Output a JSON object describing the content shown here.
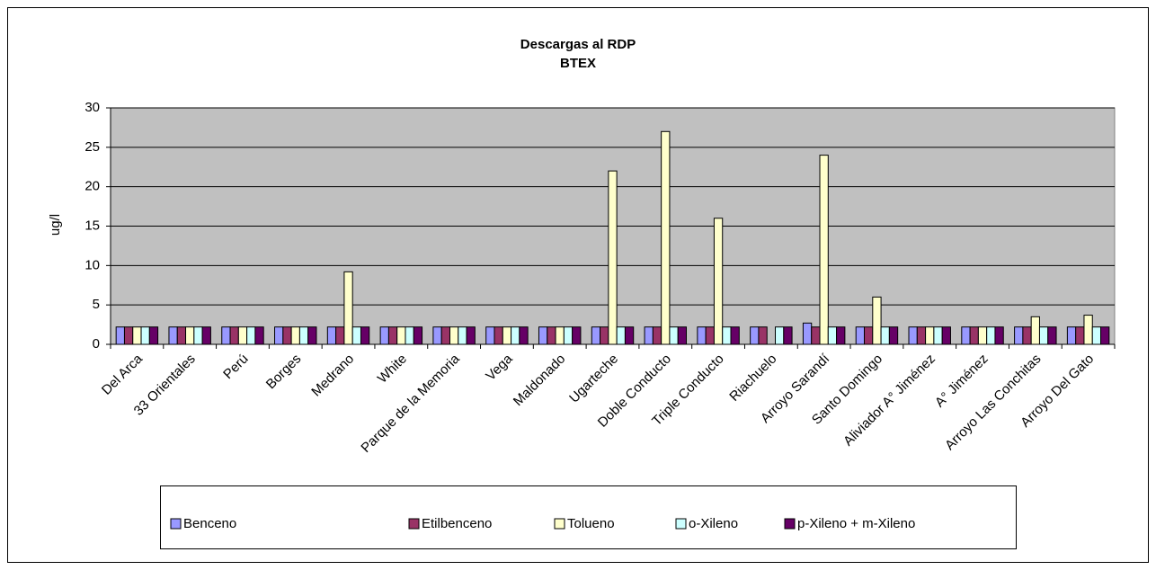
{
  "chart_data": {
    "type": "bar",
    "title": "Descargas al RDP",
    "subtitle": "BTEX",
    "y_label": "ug/l",
    "categories": [
      "Del  Arca",
      "33 Orientales",
      "Perú",
      "Borges",
      "Medrano",
      "White",
      "Parque de la Memoria",
      "Vega",
      "Maldonado",
      "Ugarteche",
      "Doble Conducto",
      "Triple Conducto",
      "Riachuelo",
      "Arroyo Sarandí",
      "Santo Domingo",
      "Aliviador A° Jiménez",
      "A° Jiménez",
      "Arroyo Las Conchitas",
      "Arroyo Del Gato"
    ],
    "series": [
      {
        "name": "Benceno",
        "color": "#9999ff",
        "values": [
          2.2,
          2.2,
          2.2,
          2.2,
          2.2,
          2.2,
          2.2,
          2.2,
          2.2,
          2.2,
          2.2,
          2.2,
          2.2,
          2.7,
          2.2,
          2.2,
          2.2,
          2.2,
          2.2
        ]
      },
      {
        "name": "Etilbenceno",
        "color": "#993366",
        "values": [
          2.2,
          2.2,
          2.2,
          2.2,
          2.2,
          2.2,
          2.2,
          2.2,
          2.2,
          2.2,
          2.2,
          2.2,
          2.2,
          2.2,
          2.2,
          2.2,
          2.2,
          2.2,
          2.2
        ]
      },
      {
        "name": "Tolueno",
        "color": "#ffffcc",
        "values": [
          2.2,
          2.2,
          2.2,
          2.2,
          9.2,
          2.2,
          2.2,
          2.2,
          2.2,
          22,
          27,
          16,
          null,
          24,
          6,
          2.2,
          2.2,
          3.5,
          3.7
        ]
      },
      {
        "name": "o-Xileno",
        "color": "#ccffff",
        "values": [
          2.2,
          2.2,
          2.2,
          2.2,
          2.2,
          2.2,
          2.2,
          2.2,
          2.2,
          2.2,
          2.2,
          2.2,
          2.2,
          2.2,
          2.2,
          2.2,
          2.2,
          2.2,
          2.2
        ]
      },
      {
        "name": "p-Xileno + m-Xileno",
        "color": "#660066",
        "values": [
          2.2,
          2.2,
          2.2,
          2.2,
          2.2,
          2.2,
          2.2,
          2.2,
          2.2,
          2.2,
          2.2,
          2.2,
          2.2,
          2.2,
          2.2,
          2.2,
          2.2,
          2.2,
          2.2
        ]
      }
    ],
    "ylim": [
      0,
      30
    ],
    "yticks": [
      0,
      5,
      10,
      15,
      20,
      25,
      30
    ],
    "grid": true,
    "plot_background": "#c0c0c0",
    "legend": "bottom"
  }
}
